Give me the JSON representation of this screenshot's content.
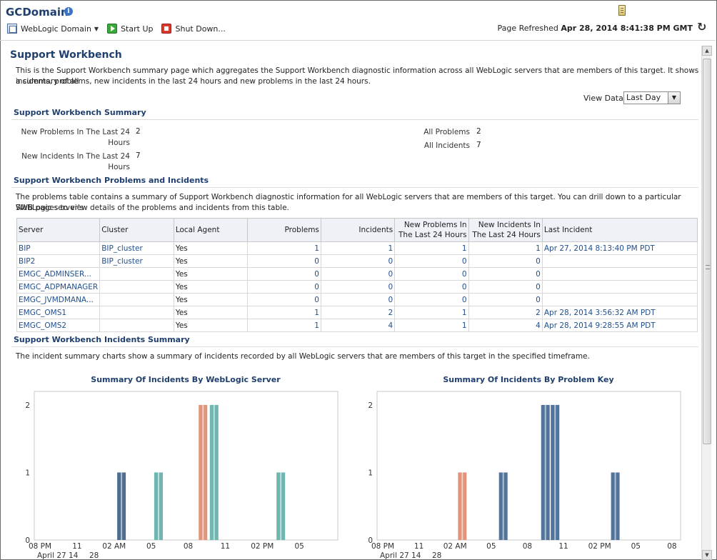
{
  "header": {
    "title": "GCDomain",
    "toolbar": {
      "domain_menu": "WebLogic Domain",
      "start_up": "Start Up",
      "shut_down": "Shut Down..."
    },
    "refreshed_label": "Page Refreshed",
    "refreshed_value": "Apr 28, 2014 8:41:38 PM GMT"
  },
  "page": {
    "title": "Support Workbench",
    "description_line1": "This is the Support Workbench summary page which aggregates the Support Workbench diagnostic information across all WebLogic servers that are members of this target. It shows a summary of all",
    "description_line2": "incidents, problems, new incidents in the last 24 hours and new problems in the last 24 hours.",
    "view_data_label": "View Data",
    "view_data_value": "Last Day"
  },
  "summary": {
    "title": "Support Workbench Summary",
    "new_problems_label_1": "New Problems In The Last 24",
    "new_problems_label_2": "Hours",
    "new_problems_value": "2",
    "new_incidents_label_1": "New Incidents In The Last 24",
    "new_incidents_label_2": "Hours",
    "new_incidents_value": "7",
    "all_problems_label": "All Problems",
    "all_problems_value": "2",
    "all_incidents_label": "All Incidents",
    "all_incidents_value": "7"
  },
  "problems": {
    "title": "Support Workbench Problems and Incidents",
    "description_line1": "The problems table contains a summary of Support Workbench diagnostic information for all WebLogic servers that are members of this target. You can drill down to a particular WebLogic server's",
    "description_line2": "SWB pages to view details of the problems and incidents from this table.",
    "columns": {
      "server": "Server",
      "cluster": "Cluster",
      "local_agent": "Local Agent",
      "problems": "Problems",
      "incidents": "Incidents",
      "new_problems_1": "New Problems In",
      "new_problems_2": "The Last 24 Hours",
      "new_incidents_1": "New Incidents In",
      "new_incidents_2": "The Last 24 Hours",
      "last_incident": "Last Incident"
    },
    "rows": [
      {
        "server": "BIP",
        "cluster": "BIP_cluster",
        "agent": "Yes",
        "problems": "1",
        "incidents": "1",
        "new_problems": "1",
        "new_incidents": "1",
        "last": "Apr 27, 2014 8:13:40 PM PDT"
      },
      {
        "server": "BIP2",
        "cluster": "BIP_cluster",
        "agent": "Yes",
        "problems": "0",
        "incidents": "0",
        "new_problems": "0",
        "new_incidents": "0",
        "last": ""
      },
      {
        "server": "EMGC_ADMINSER...",
        "cluster": "",
        "agent": "Yes",
        "problems": "0",
        "incidents": "0",
        "new_problems": "0",
        "new_incidents": "0",
        "last": ""
      },
      {
        "server": "EMGC_ADPMANAGER",
        "cluster": "",
        "agent": "Yes",
        "problems": "0",
        "incidents": "0",
        "new_problems": "0",
        "new_incidents": "0",
        "last": ""
      },
      {
        "server": "EMGC_JVMDMANA...",
        "cluster": "",
        "agent": "Yes",
        "problems": "0",
        "incidents": "0",
        "new_problems": "0",
        "new_incidents": "0",
        "last": ""
      },
      {
        "server": "EMGC_OMS1",
        "cluster": "",
        "agent": "Yes",
        "problems": "1",
        "incidents": "2",
        "new_problems": "1",
        "new_incidents": "2",
        "last": "Apr 28, 2014 3:56:32 AM PDT"
      },
      {
        "server": "EMGC_OMS2",
        "cluster": "",
        "agent": "Yes",
        "problems": "1",
        "incidents": "4",
        "new_problems": "1",
        "new_incidents": "4",
        "last": "Apr 28, 2014 9:28:55 AM PDT"
      }
    ]
  },
  "incidents_summary": {
    "title": "Support Workbench Incidents Summary",
    "description": "The incident summary charts show a summary of incidents recorded by all WebLogic servers that are members of this target in the specified timeframe."
  },
  "colors": {
    "blue_bar": "#4f6d8f",
    "teal_bar": "#6fb6b0",
    "orange_bar": "#e0957a",
    "steel_bar": "#52749a"
  },
  "chart_data": [
    {
      "type": "bar",
      "title": "Summary Of Incidents By WebLogic Server",
      "x_ticks": [
        "08 PM",
        "11",
        "02 AM",
        "05",
        "08",
        "11",
        "02 PM",
        "05"
      ],
      "x_sub_ticks": [
        "April 27 14",
        "28"
      ],
      "y_ticks": [
        "0",
        "1",
        "2"
      ],
      "ylim": [
        0,
        2.2
      ],
      "bars": [
        {
          "at": "02 AM",
          "offset_hours": 0.6,
          "value": 1,
          "color": "#4f6d8f"
        },
        {
          "at": "05",
          "offset_hours": 0.6,
          "value": 1,
          "color": "#6fb6b0"
        },
        {
          "at": "08",
          "offset_hours": 1.2,
          "value": 2,
          "color": "#e0957a"
        },
        {
          "at": "08",
          "offset_hours": 2.1,
          "value": 2,
          "color": "#6fb6b0"
        },
        {
          "at": "02 PM",
          "offset_hours": 1.5,
          "value": 1,
          "color": "#6fb6b0"
        }
      ]
    },
    {
      "type": "bar",
      "title": "Summary Of Incidents By Problem Key",
      "x_ticks": [
        "08 PM",
        "11",
        "02 AM",
        "05",
        "08",
        "11",
        "02 PM",
        "05",
        "08"
      ],
      "x_sub_ticks": [
        "April 27 14",
        "28"
      ],
      "y_ticks": [
        "0",
        "1",
        "2"
      ],
      "ylim": [
        0,
        2.2
      ],
      "bars": [
        {
          "at": "02 AM",
          "offset_hours": 0.6,
          "value": 1,
          "color": "#e0957a"
        },
        {
          "at": "05",
          "offset_hours": 1.0,
          "value": 1,
          "color": "#52749a"
        },
        {
          "at": "08",
          "offset_hours": 1.5,
          "value": 2,
          "color": "#52749a"
        },
        {
          "at": "08",
          "offset_hours": 2.3,
          "value": 2,
          "color": "#52749a"
        },
        {
          "at": "02 PM",
          "offset_hours": 1.3,
          "value": 1,
          "color": "#52749a"
        }
      ]
    }
  ]
}
